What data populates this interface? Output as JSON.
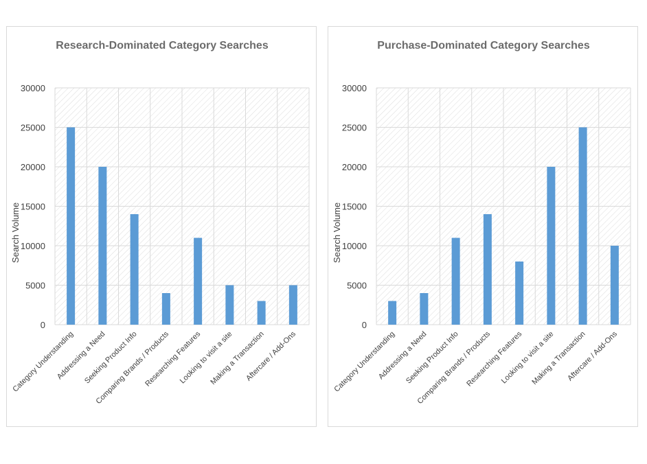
{
  "colors": {
    "bar": "#5b9bd5",
    "grid": "#d9d9d9",
    "hatch": "#dcdcdc",
    "border": "#d9d9d9"
  },
  "chart_data": [
    {
      "type": "bar",
      "title": "Research-Dominated Category Searches",
      "xlabel": "",
      "ylabel": "Search Volume",
      "ylim": [
        0,
        30000
      ],
      "yticks": [
        "0",
        "5000",
        "10000",
        "15000",
        "20000",
        "25000",
        "30000"
      ],
      "grid": true,
      "categories": [
        "Category Understanding",
        "Addressing a Need",
        "Seeking Product Info",
        "Comparing Brands / Products",
        "Researching Features",
        "Looking to visit a site",
        "Making a Transaction",
        "Aftercare / Add-Ons"
      ],
      "values": [
        25000,
        20000,
        14000,
        4000,
        11000,
        5000,
        3000,
        5000
      ]
    },
    {
      "type": "bar",
      "title": "Purchase-Dominated Category Searches",
      "xlabel": "",
      "ylabel": "Search Volume",
      "ylim": [
        0,
        30000
      ],
      "yticks": [
        "0",
        "5000",
        "10000",
        "15000",
        "20000",
        "25000",
        "30000"
      ],
      "grid": true,
      "categories": [
        "Category Understanding",
        "Addressing a Need",
        "Seeking Product Info",
        "Comparing Brands / Products",
        "Researching Features",
        "Looking to visit a site",
        "Making a Transaction",
        "Aftercare / Add-Ons"
      ],
      "values": [
        3000,
        4000,
        11000,
        14000,
        8000,
        20000,
        25000,
        10000
      ]
    }
  ]
}
